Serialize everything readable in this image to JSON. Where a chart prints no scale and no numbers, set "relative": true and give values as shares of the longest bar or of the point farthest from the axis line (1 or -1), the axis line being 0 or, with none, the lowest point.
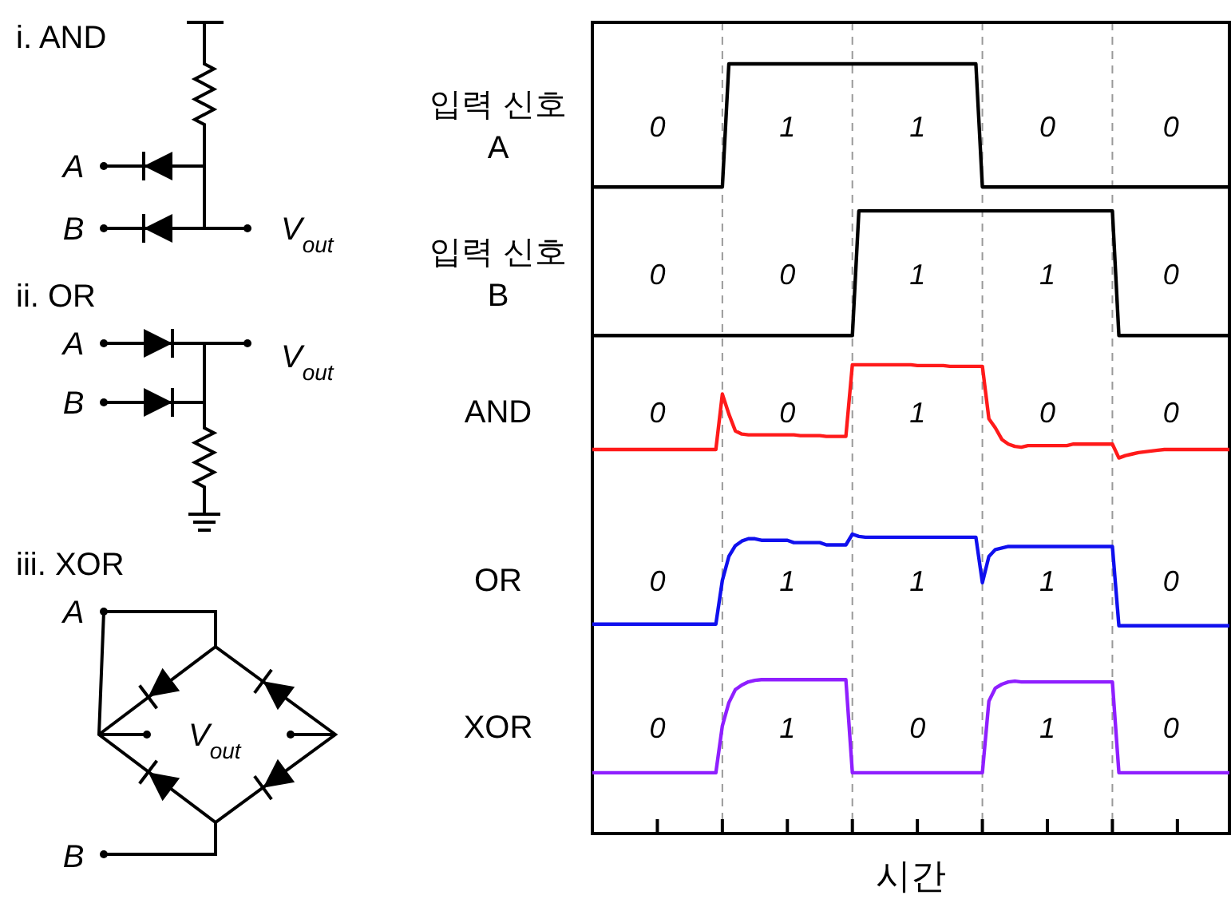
{
  "chart_data": {
    "type": "line",
    "relative": true,
    "xlabel": "시간",
    "categories": [
      null,
      null,
      null,
      null,
      null,
      null,
      null,
      null,
      null,
      null,
      null,
      null,
      null,
      null,
      null,
      null,
      null,
      null,
      null,
      null,
      null,
      null,
      null,
      null,
      null,
      null,
      null,
      null,
      null,
      null,
      null,
      null,
      null,
      null,
      null,
      null,
      null,
      null,
      null,
      null,
      null,
      null,
      null,
      null,
      null,
      null,
      null,
      null,
      null,
      null,
      null,
      null,
      null,
      null,
      null,
      null,
      null,
      null,
      null,
      null,
      null,
      null,
      null,
      null,
      null,
      null,
      null,
      null,
      null,
      null,
      null,
      null,
      null,
      null,
      null,
      null,
      null,
      null,
      null,
      null,
      null,
      null,
      null,
      null,
      null,
      null,
      null,
      null,
      null,
      null,
      null,
      null,
      null,
      null,
      null,
      null,
      null,
      null,
      null
    ],
    "series": [
      {
        "name": "입력 신호 A",
        "color": "#000000",
        "values": [
          0.84,
          0.84,
          0.84,
          0.84,
          0.84,
          0.84,
          0.84,
          0.84,
          0.84,
          0.84,
          0.84,
          0.84,
          0.84,
          0.84,
          0.84,
          0.84,
          0.84,
          0.84,
          0.84,
          0.84,
          0.84,
          1,
          1,
          1,
          1,
          1,
          1,
          1,
          1,
          1,
          1,
          1,
          1,
          1,
          1,
          1,
          1,
          1,
          1,
          1,
          1,
          1,
          1,
          1,
          1,
          1,
          1,
          1,
          1,
          1,
          1,
          1,
          1,
          1,
          1,
          1,
          1,
          1,
          1,
          1,
          0.84,
          0.84,
          0.84,
          0.84,
          0.84,
          0.84,
          0.84,
          0.84,
          0.84,
          0.84,
          0.84,
          0.84,
          0.84,
          0.84,
          0.84,
          0.84,
          0.84,
          0.84,
          0.84,
          0.84,
          0.84,
          0.84,
          0.84,
          0.84,
          0.84,
          0.84,
          0.84,
          0.84,
          0.84,
          0.84,
          0.84,
          0.84,
          0.84,
          0.84,
          0.84,
          0.84,
          0.84,
          0.84,
          0.84
        ]
      },
      {
        "name": "입력 신호 B",
        "color": "#000000",
        "values": [
          0.647,
          0.647,
          0.647,
          0.647,
          0.647,
          0.647,
          0.647,
          0.647,
          0.647,
          0.647,
          0.647,
          0.647,
          0.647,
          0.647,
          0.647,
          0.647,
          0.647,
          0.647,
          0.647,
          0.647,
          0.647,
          0.647,
          0.647,
          0.647,
          0.647,
          0.647,
          0.647,
          0.647,
          0.647,
          0.647,
          0.647,
          0.647,
          0.647,
          0.647,
          0.647,
          0.647,
          0.647,
          0.647,
          0.647,
          0.647,
          0.647,
          0.809,
          0.809,
          0.809,
          0.809,
          0.809,
          0.809,
          0.809,
          0.809,
          0.809,
          0.809,
          0.809,
          0.809,
          0.809,
          0.809,
          0.809,
          0.809,
          0.809,
          0.809,
          0.809,
          0.809,
          0.809,
          0.809,
          0.809,
          0.809,
          0.809,
          0.809,
          0.809,
          0.809,
          0.809,
          0.809,
          0.809,
          0.809,
          0.809,
          0.809,
          0.809,
          0.809,
          0.809,
          0.809,
          0.809,
          0.809,
          0.647,
          0.647,
          0.647,
          0.647,
          0.647,
          0.647,
          0.647,
          0.647,
          0.647,
          0.647,
          0.647,
          0.647,
          0.647,
          0.647,
          0.647,
          0.647,
          0.647,
          0.647
        ]
      },
      {
        "name": "AND",
        "color": "#ff1a1a",
        "values": [
          0.499,
          0.499,
          0.499,
          0.499,
          0.499,
          0.499,
          0.499,
          0.499,
          0.499,
          0.499,
          0.499,
          0.499,
          0.499,
          0.499,
          0.499,
          0.499,
          0.499,
          0.499,
          0.499,
          0.499,
          0.571,
          0.545,
          0.523,
          0.519,
          0.518,
          0.518,
          0.518,
          0.518,
          0.518,
          0.518,
          0.518,
          0.518,
          0.517,
          0.517,
          0.517,
          0.517,
          0.516,
          0.516,
          0.516,
          0.516,
          0.609,
          0.609,
          0.609,
          0.609,
          0.609,
          0.609,
          0.609,
          0.609,
          0.609,
          0.609,
          0.608,
          0.608,
          0.608,
          0.608,
          0.608,
          0.607,
          0.607,
          0.607,
          0.607,
          0.607,
          0.607,
          0.539,
          0.527,
          0.512,
          0.506,
          0.503,
          0.502,
          0.504,
          0.504,
          0.504,
          0.504,
          0.504,
          0.504,
          0.504,
          0.506,
          0.506,
          0.506,
          0.506,
          0.506,
          0.506,
          0.506,
          0.488,
          0.491,
          0.493,
          0.495,
          0.496,
          0.497,
          0.498,
          0.499,
          0.499,
          0.499,
          0.499,
          0.499,
          0.499,
          0.499,
          0.499,
          0.499,
          0.499,
          0.499
        ]
      },
      {
        "name": "OR",
        "color": "#1010ee",
        "values": [
          0.272,
          0.272,
          0.272,
          0.272,
          0.272,
          0.272,
          0.272,
          0.272,
          0.272,
          0.272,
          0.272,
          0.272,
          0.272,
          0.272,
          0.272,
          0.272,
          0.272,
          0.272,
          0.272,
          0.272,
          0.329,
          0.36,
          0.374,
          0.38,
          0.383,
          0.383,
          0.381,
          0.381,
          0.381,
          0.381,
          0.381,
          0.378,
          0.378,
          0.378,
          0.378,
          0.378,
          0.375,
          0.375,
          0.375,
          0.375,
          0.389,
          0.386,
          0.385,
          0.385,
          0.385,
          0.385,
          0.385,
          0.385,
          0.385,
          0.385,
          0.385,
          0.385,
          0.385,
          0.385,
          0.385,
          0.385,
          0.385,
          0.385,
          0.385,
          0.385,
          0.326,
          0.36,
          0.369,
          0.371,
          0.373,
          0.373,
          0.373,
          0.373,
          0.373,
          0.373,
          0.373,
          0.373,
          0.373,
          0.373,
          0.373,
          0.373,
          0.373,
          0.373,
          0.373,
          0.373,
          0.373,
          0.27,
          0.27,
          0.27,
          0.27,
          0.27,
          0.27,
          0.27,
          0.27,
          0.27,
          0.27,
          0.27,
          0.27,
          0.27,
          0.27,
          0.27,
          0.27,
          0.27,
          0.27
        ]
      },
      {
        "name": "XOR",
        "color": "#8f1fff",
        "values": [
          0.079,
          0.079,
          0.079,
          0.079,
          0.079,
          0.079,
          0.079,
          0.079,
          0.079,
          0.079,
          0.079,
          0.079,
          0.079,
          0.079,
          0.079,
          0.079,
          0.079,
          0.079,
          0.079,
          0.079,
          0.14,
          0.17,
          0.187,
          0.193,
          0.197,
          0.199,
          0.2,
          0.2,
          0.2,
          0.2,
          0.2,
          0.2,
          0.2,
          0.2,
          0.2,
          0.2,
          0.2,
          0.2,
          0.2,
          0.2,
          0.079,
          0.079,
          0.079,
          0.079,
          0.079,
          0.079,
          0.079,
          0.079,
          0.079,
          0.079,
          0.079,
          0.079,
          0.079,
          0.079,
          0.079,
          0.079,
          0.079,
          0.079,
          0.079,
          0.079,
          0.079,
          0.172,
          0.189,
          0.194,
          0.197,
          0.198,
          0.197,
          0.197,
          0.197,
          0.197,
          0.197,
          0.197,
          0.197,
          0.197,
          0.197,
          0.197,
          0.197,
          0.197,
          0.197,
          0.197,
          0.197,
          0.079,
          0.079,
          0.079,
          0.079,
          0.079,
          0.079,
          0.079,
          0.079,
          0.079,
          0.079,
          0.079,
          0.079,
          0.079,
          0.079,
          0.079,
          0.079,
          0.079,
          0.079
        ]
      }
    ],
    "grid": "x",
    "annotations": [
      "0",
      "1",
      "1",
      "0",
      "0",
      "0",
      "0",
      "1",
      "1",
      "0",
      "0",
      "0",
      "1",
      "0",
      "0",
      "0",
      "1",
      "1",
      "1",
      "0",
      "0",
      "1",
      "0",
      "1",
      "0",
      "i. AND",
      "A",
      "B",
      "V$_{out}$",
      "ii. OR",
      "A",
      "B",
      "V$_{out}$",
      "iii. XOR",
      "A",
      "B",
      "V$_{out}$"
    ]
  }
}
